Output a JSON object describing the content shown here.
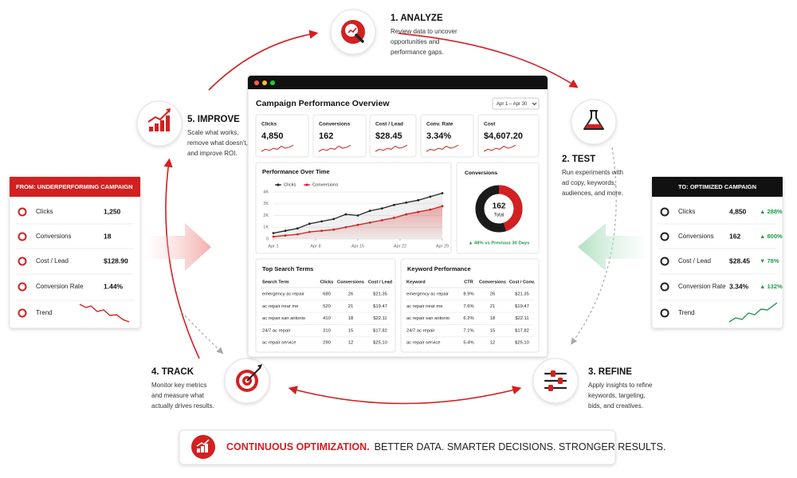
{
  "steps": [
    {
      "title": "1. ANALYZE",
      "lines": [
        "Review data to uncover",
        "opportunities and",
        "performance gaps."
      ]
    },
    {
      "title": "2. TEST",
      "lines": [
        "Run experiments with",
        "ad copy, keywords,",
        "audiences, and more."
      ]
    },
    {
      "title": "3. REFINE",
      "lines": [
        "Apply insights to refine",
        "keywords, targeting,",
        "bids, and creatives."
      ]
    },
    {
      "title": "4. TRACK",
      "lines": [
        "Monitor key metrics",
        "and measure what",
        "actually drives results."
      ]
    },
    {
      "title": "5. IMPROVE",
      "lines": [
        "Scale what works,",
        "remove what doesn't,",
        "and improve ROI."
      ]
    }
  ],
  "before": {
    "title": "FROM: UNDERPERFORMING CAMPAIGN",
    "rows": [
      {
        "label": "Clicks",
        "value": "1,250"
      },
      {
        "label": "Conversions",
        "value": "18"
      },
      {
        "label": "Cost / Lead",
        "value": "$128.90"
      },
      {
        "label": "Conversion Rate",
        "value": "1.44%"
      },
      {
        "label": "Trend"
      }
    ]
  },
  "after": {
    "title": "TO: OPTIMIZED CAMPAIGN",
    "rows": [
      {
        "label": "Clicks",
        "value": "4,850",
        "change": "▲ 288%"
      },
      {
        "label": "Conversions",
        "value": "162",
        "change": "▲ 800%"
      },
      {
        "label": "Cost / Lead",
        "value": "$28.45",
        "change": "▼ 78%"
      },
      {
        "label": "Conversion Rate",
        "value": "3.34%",
        "change": "▲ 132%"
      },
      {
        "label": "Trend"
      }
    ]
  },
  "dashboard": {
    "title": "Campaign Performance Overview",
    "date_range": "Apr 1 – Apr 30",
    "kpis": [
      {
        "label": "Clicks",
        "value": "4,850"
      },
      {
        "label": "Conversions",
        "value": "162"
      },
      {
        "label": "Cost / Lead",
        "value": "$28.45"
      },
      {
        "label": "Conv. Rate",
        "value": "3.34%"
      },
      {
        "label": "Cost",
        "value": "$4,607.20"
      }
    ],
    "performance": {
      "title": "Performance Over Time",
      "x": [
        1,
        3,
        5,
        7,
        9,
        11,
        13,
        15,
        17,
        19,
        21,
        23,
        25,
        27,
        29
      ],
      "xlim": [
        1,
        29
      ],
      "xticks": [
        {
          "value": 1,
          "label": "Apr 1"
        },
        {
          "value": 8,
          "label": "Apr 8"
        },
        {
          "value": 15,
          "label": "Apr 15"
        },
        {
          "value": 22,
          "label": "Apr 22"
        },
        {
          "value": 29,
          "label": "Apr 29"
        }
      ],
      "ylim": [
        0,
        4000
      ],
      "yticks": [
        0,
        {
          "value": 1000,
          "label": "1K"
        },
        {
          "value": 2000,
          "label": "2K"
        },
        {
          "value": 3000,
          "label": "3K"
        },
        {
          "value": 4000,
          "label": "4K"
        }
      ],
      "series": [
        {
          "name": "Clicks",
          "color": "#222222",
          "values": [
            500,
            700,
            900,
            1300,
            1500,
            1700,
            2100,
            2000,
            2400,
            2600,
            2900,
            3100,
            3300,
            3600,
            3900
          ]
        },
        {
          "name": "Conversions",
          "color": "#d32020",
          "values": [
            200,
            300,
            400,
            600,
            700,
            800,
            1000,
            1200,
            1400,
            1600,
            1800,
            2100,
            2300,
            2500,
            2800
          ]
        }
      ]
    },
    "donut": {
      "title": "Conversions",
      "value": "162",
      "label": "Total",
      "change": "▲ 48% vs Previous 30 Days"
    },
    "search_terms": {
      "title": "Top Search Terms",
      "columns": [
        "Search Term",
        "Clicks",
        "Conversions",
        "Cost / Lead"
      ],
      "rows": [
        [
          "emergency ac repair",
          "680",
          "26",
          "$21.35"
        ],
        [
          "ac repair near me",
          "520",
          "21",
          "$19.47"
        ],
        [
          "ac repair san antonio",
          "410",
          "18",
          "$22.11"
        ],
        [
          "24/7 ac repair",
          "310",
          "15",
          "$17.82"
        ],
        [
          "ac repair service",
          "290",
          "12",
          "$25.10"
        ]
      ]
    },
    "keywords": {
      "title": "Keyword Performance",
      "columns": [
        "Keyword",
        "CTR",
        "Conversions",
        "Cost / Conv."
      ],
      "rows": [
        [
          "emergency ac repair",
          "8.9%",
          "26",
          "$21.35"
        ],
        [
          "ac repair near me",
          "7.6%",
          "21",
          "$19.47"
        ],
        [
          "ac repair san antonio",
          "6.2%",
          "18",
          "$22.11"
        ],
        [
          "24/7 ac repair",
          "7.1%",
          "15",
          "$17.82"
        ],
        [
          "ac repair service",
          "5.4%",
          "12",
          "$25.10"
        ]
      ]
    }
  },
  "banner": {
    "highlight": "CONTINUOUS OPTIMIZATION.",
    "text": "BETTER DATA. SMARTER DECISIONS. STRONGER RESULTS."
  }
}
